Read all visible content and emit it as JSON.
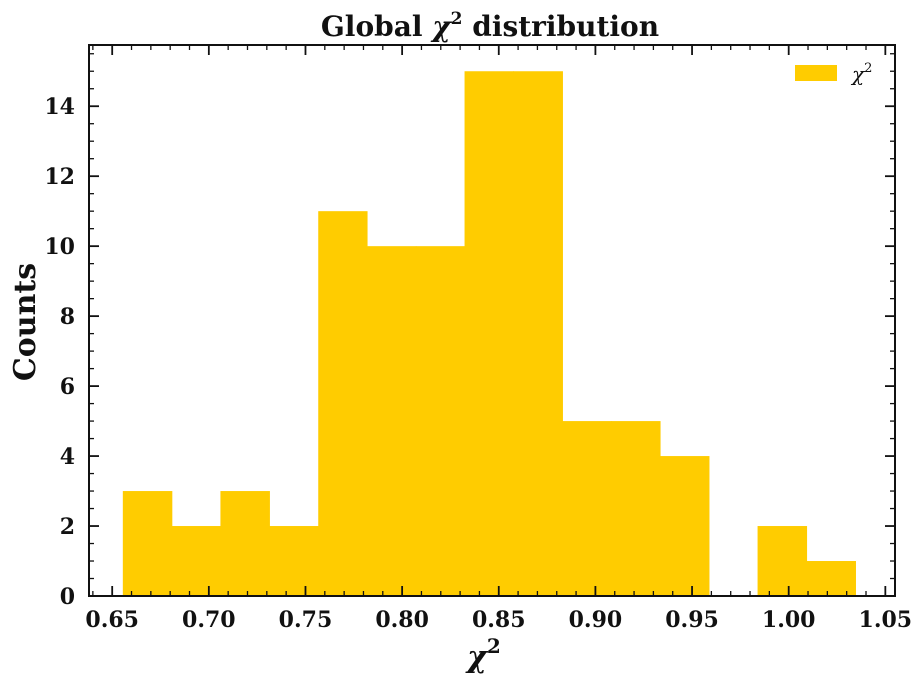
{
  "chart_data": {
    "type": "bar",
    "title_text": "Global ",
    "title_math": "χ",
    "title_suffix": " distribution",
    "xlabel": "χ",
    "ylabel": "Counts",
    "superscript": "2",
    "legend_label": "χ",
    "legend_position": "top-right",
    "bar_color": "#FFCC00",
    "xlim": [
      0.638,
      1.055
    ],
    "ylim": [
      0,
      15.75
    ],
    "xticks": [
      "0.65",
      "0.70",
      "0.75",
      "0.80",
      "0.85",
      "0.90",
      "0.95",
      "1.00",
      "1.05"
    ],
    "yticks": [
      "0",
      "2",
      "4",
      "6",
      "8",
      "10",
      "12",
      "14"
    ],
    "grid": false,
    "bins": [
      {
        "x0": 0.6555,
        "x1": 0.6808,
        "count": 3
      },
      {
        "x0": 0.6808,
        "x1": 0.706,
        "count": 2
      },
      {
        "x0": 0.706,
        "x1": 0.7313,
        "count": 3
      },
      {
        "x0": 0.7313,
        "x1": 0.7566,
        "count": 2
      },
      {
        "x0": 0.7566,
        "x1": 0.7818,
        "count": 11
      },
      {
        "x0": 0.7818,
        "x1": 0.8071,
        "count": 10
      },
      {
        "x0": 0.8071,
        "x1": 0.8323,
        "count": 10
      },
      {
        "x0": 0.8323,
        "x1": 0.8576,
        "count": 15
      },
      {
        "x0": 0.8576,
        "x1": 0.8829,
        "count": 15
      },
      {
        "x0": 0.8829,
        "x1": 0.9081,
        "count": 5
      },
      {
        "x0": 0.9081,
        "x1": 0.9334,
        "count": 5
      },
      {
        "x0": 0.9334,
        "x1": 0.9587,
        "count": 4
      },
      {
        "x0": 0.9587,
        "x1": 0.9839,
        "count": 0
      },
      {
        "x0": 0.9839,
        "x1": 1.0092,
        "count": 2
      },
      {
        "x0": 1.0092,
        "x1": 1.0345,
        "count": 1
      }
    ]
  }
}
